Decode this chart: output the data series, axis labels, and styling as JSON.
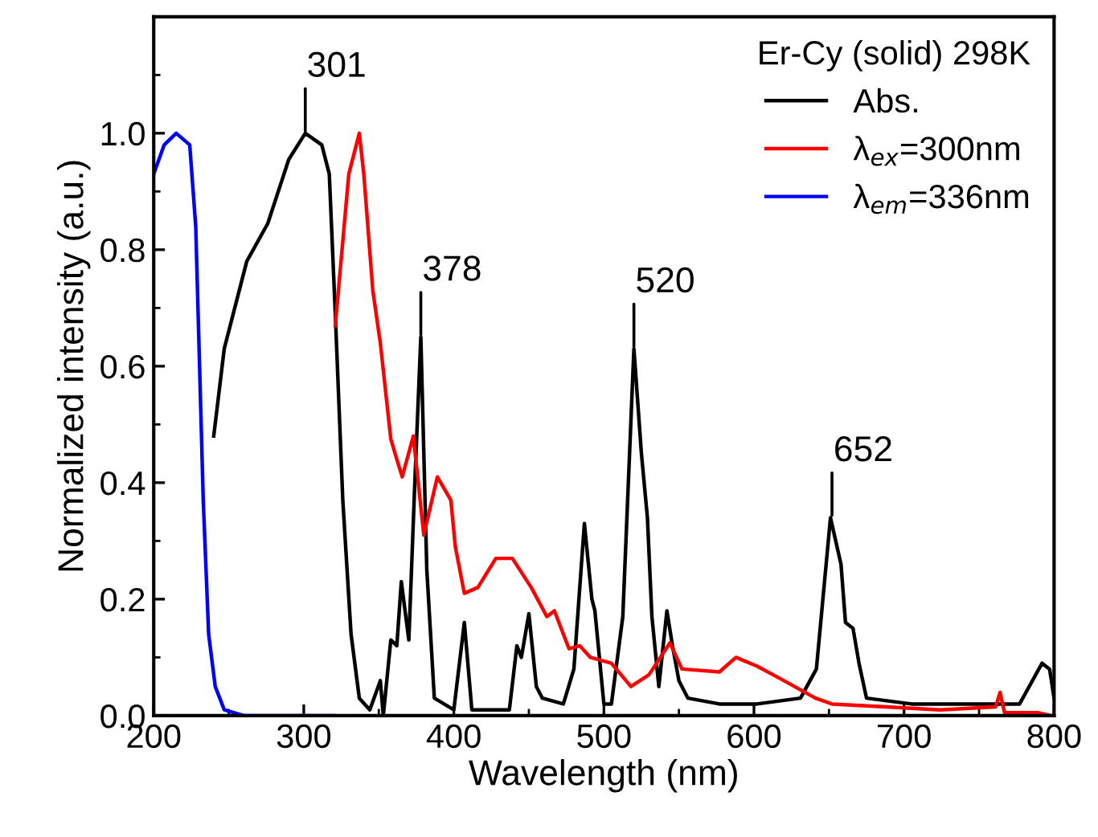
{
  "chart_data": {
    "type": "line",
    "xlabel": "Wavelength (nm)",
    "ylabel": "Normalized intensity (a.u.)",
    "legend_title": "Er-Cy (solid) 298K",
    "legend": "top right",
    "grid": false,
    "xlim": [
      200,
      800
    ],
    "ylim": [
      0,
      1.2
    ],
    "xticks": [
      200,
      {
        "value": 250,
        "label": null
      },
      300,
      {
        "value": 350,
        "label": null
      },
      400,
      {
        "value": 450,
        "label": null
      },
      500,
      {
        "value": 550,
        "label": null
      },
      600,
      {
        "value": 650,
        "label": null
      },
      700,
      {
        "value": 750,
        "label": null
      },
      800
    ],
    "yticks": [
      {
        "value": 0,
        "label": "0.0"
      },
      {
        "value": 0.1,
        "label": null
      },
      0.2,
      {
        "value": 0.3,
        "label": null
      },
      0.4,
      {
        "value": 0.5,
        "label": null
      },
      0.6,
      {
        "value": 0.7,
        "label": null
      },
      0.8,
      {
        "value": 0.9,
        "label": null
      },
      {
        "value": 1.0,
        "label": "1.0"
      },
      {
        "value": 1.1,
        "label": null
      }
    ],
    "series": [
      {
        "name": "Abs.",
        "color": "#000000",
        "x": [
          240,
          247,
          262,
          276,
          290,
          301,
          312,
          317,
          321,
          326,
          331.5,
          337,
          344,
          351,
          353,
          358,
          362,
          365,
          370,
          374,
          378,
          382,
          387,
          400,
          407,
          412,
          423,
          437,
          442,
          445,
          450,
          455,
          459,
          473,
          480,
          487,
          492,
          494,
          500,
          505,
          512.6,
          520,
          525,
          529,
          532,
          536.6,
          542,
          545.7,
          550,
          556,
          577,
          602,
          631,
          641.6,
          651,
          658,
          661,
          666,
          670,
          675,
          705,
          741,
          777,
          792,
          797,
          800
        ],
        "values": [
          0.48,
          0.63,
          0.78,
          0.845,
          0.955,
          1.0,
          0.98,
          0.93,
          0.69,
          0.37,
          0.14,
          0.03,
          0.01,
          0.06,
          0.0,
          0.13,
          0.12,
          0.23,
          0.13,
          0.4,
          0.65,
          0.25,
          0.03,
          0.01,
          0.16,
          0.01,
          0.01,
          0.01,
          0.12,
          0.1,
          0.175,
          0.05,
          0.03,
          0.02,
          0.08,
          0.33,
          0.2,
          0.18,
          0.02,
          0.02,
          0.17,
          0.63,
          0.45,
          0.34,
          0.17,
          0.05,
          0.18,
          0.12,
          0.06,
          0.03,
          0.02,
          0.02,
          0.03,
          0.08,
          0.34,
          0.26,
          0.16,
          0.15,
          0.09,
          0.03,
          0.02,
          0.02,
          0.02,
          0.09,
          0.08,
          0.03
        ]
      },
      {
        "name": "λ$_{ex}$=300nm",
        "color": "#ff0000",
        "x": [
          321,
          330,
          337,
          340,
          346,
          351,
          358,
          362,
          365.6,
          373,
          380,
          389,
          398,
          401,
          407,
          416,
          428,
          439,
          451.6,
          462,
          467,
          476.7,
          484,
          491,
          505,
          518,
          530,
          544,
          552,
          577,
          588,
          602,
          620,
          641,
          652,
          688,
          724,
          761,
          764,
          767,
          789,
          798
        ],
        "values": [
          0.67,
          0.93,
          1.0,
          0.93,
          0.73,
          0.64,
          0.475,
          0.44,
          0.41,
          0.48,
          0.31,
          0.41,
          0.37,
          0.29,
          0.21,
          0.22,
          0.27,
          0.27,
          0.22,
          0.17,
          0.18,
          0.115,
          0.12,
          0.1,
          0.09,
          0.05,
          0.07,
          0.125,
          0.08,
          0.075,
          0.1,
          0.085,
          0.06,
          0.03,
          0.02,
          0.015,
          0.01,
          0.015,
          0.04,
          0.005,
          0.005,
          0.0
        ]
      },
      {
        "name": "λ$_{em}$=336nm",
        "color": "#0000ff",
        "x": [
          200,
          207,
          215,
          224,
          228,
          233,
          236.6,
          241,
          247,
          260,
          290,
          320
        ],
        "values": [
          0.93,
          0.98,
          1.0,
          0.98,
          0.84,
          0.37,
          0.14,
          0.05,
          0.01,
          0.0,
          0.0,
          0.0
        ]
      }
    ],
    "annotations": [
      {
        "text": "301",
        "x": 301,
        "y": 1.0
      },
      {
        "text": "378",
        "x": 378,
        "y": 0.65
      },
      {
        "text": "520",
        "x": 520,
        "y": 0.63
      },
      {
        "text": "652",
        "x": 652,
        "y": 0.34
      }
    ]
  }
}
